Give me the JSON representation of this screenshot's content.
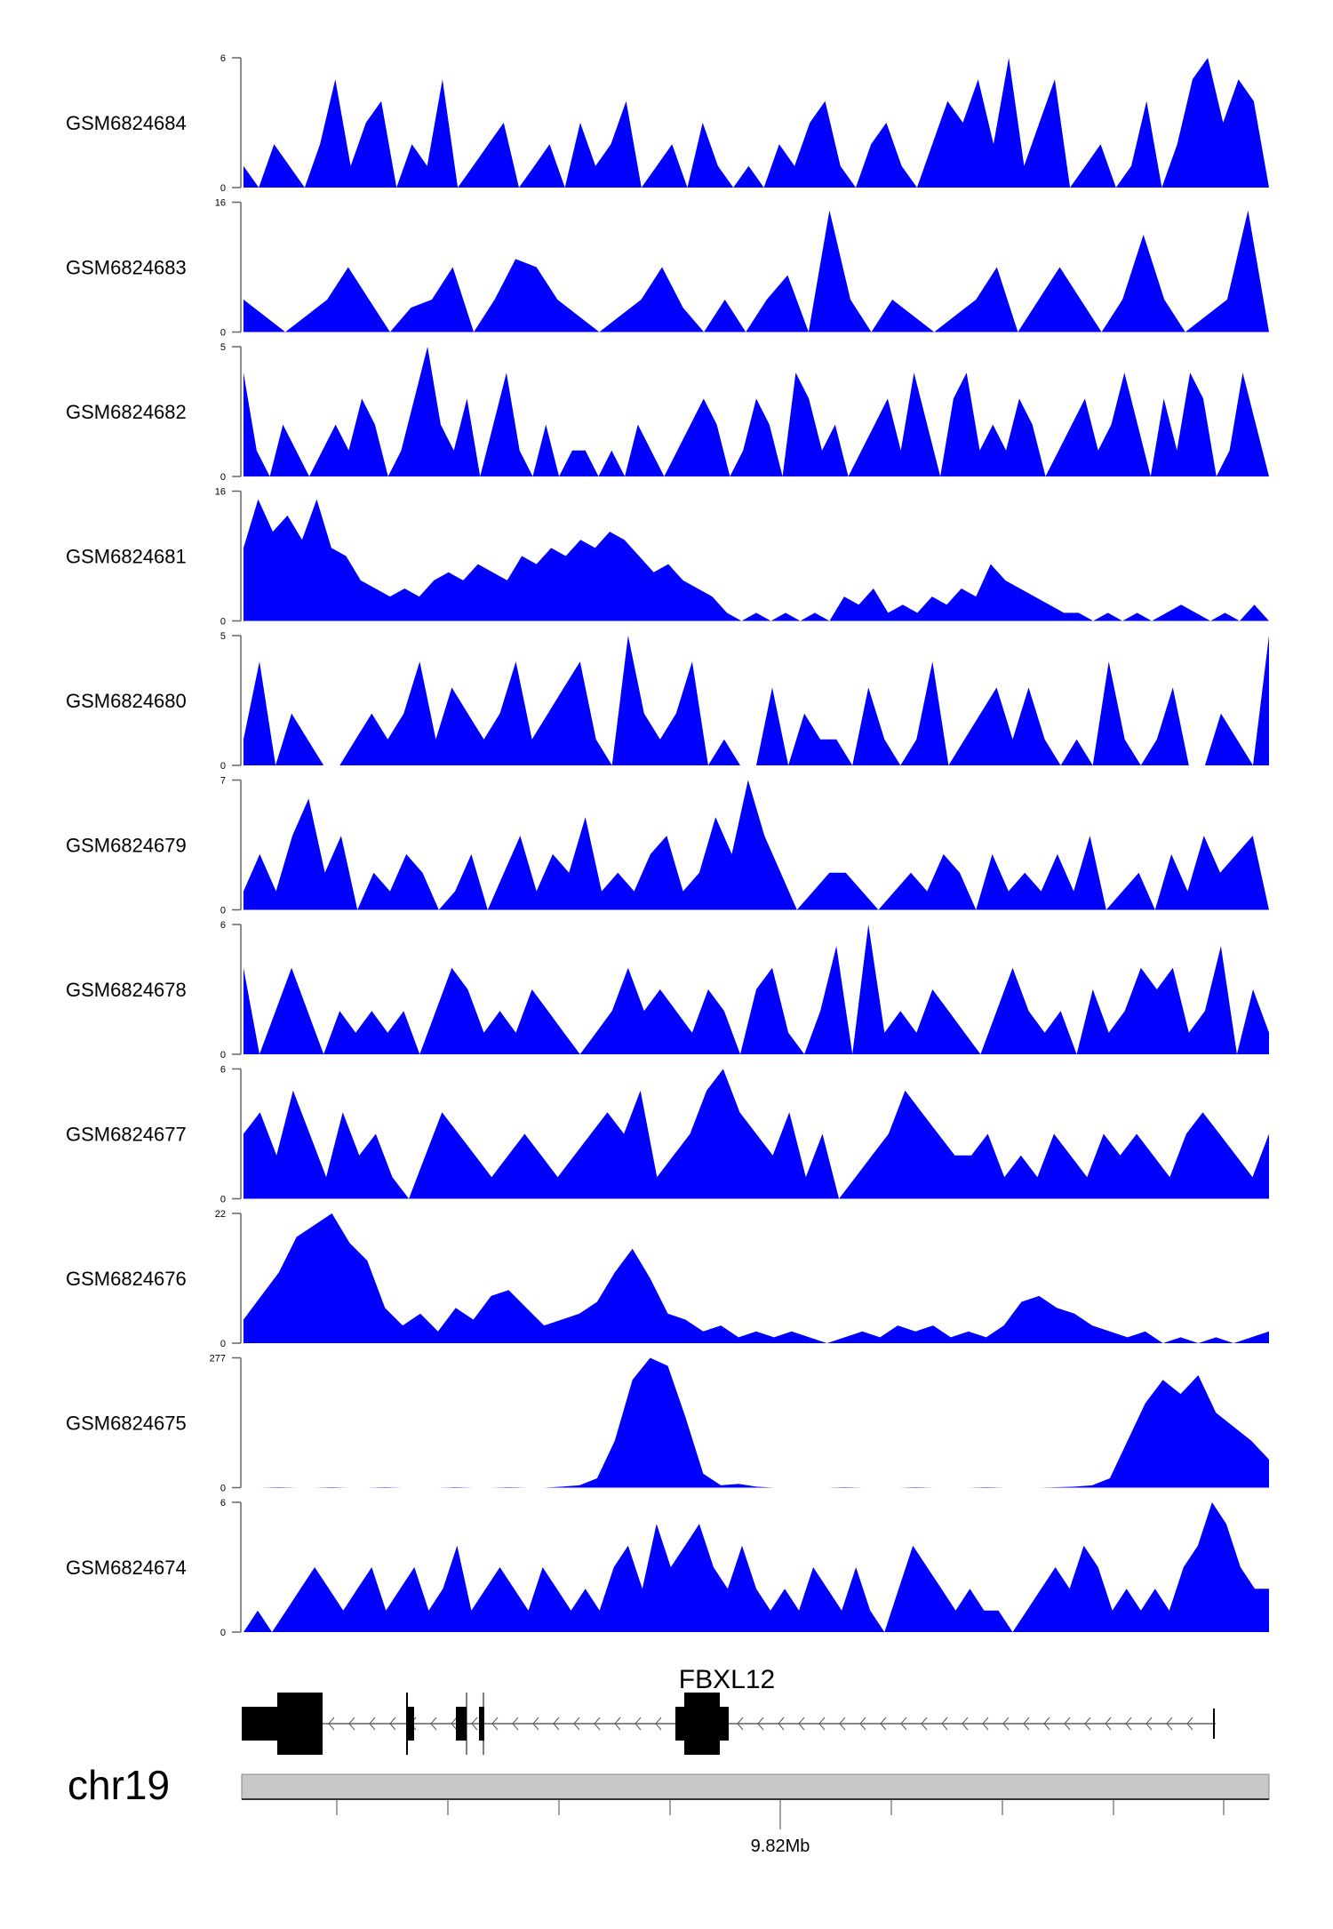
{
  "chart_data": {
    "type": "area",
    "title": "",
    "xlabel": "",
    "ylabel": "",
    "grid": false,
    "fill_color": "#0000ff",
    "tracks": [
      {
        "name": "GSM6824684",
        "ylim": [
          0,
          6
        ],
        "values": [
          1,
          0,
          2,
          1,
          0,
          2,
          5,
          1,
          3,
          4,
          0,
          2,
          1,
          5,
          0,
          1,
          2,
          3,
          0,
          1,
          2,
          0,
          3,
          1,
          2,
          4,
          0,
          1,
          2,
          0,
          3,
          1,
          0,
          1,
          0,
          2,
          1,
          3,
          4,
          1,
          0,
          2,
          3,
          1,
          0,
          2,
          4,
          3,
          5,
          2,
          6,
          1,
          3,
          5,
          0,
          1,
          2,
          0,
          1,
          4,
          0,
          2,
          5,
          6,
          3,
          5,
          4,
          0
        ]
      },
      {
        "name": "GSM6824683",
        "ylim": [
          0,
          16
        ],
        "values": [
          4,
          2,
          0,
          2,
          4,
          8,
          4,
          0,
          3,
          4,
          8,
          0,
          4,
          9,
          8,
          4,
          2,
          0,
          2,
          4,
          8,
          3,
          0,
          4,
          0,
          4,
          7,
          0,
          15,
          4,
          0,
          4,
          2,
          0,
          2,
          4,
          8,
          0,
          4,
          8,
          4,
          0,
          4,
          12,
          4,
          0,
          2,
          4,
          15,
          0
        ]
      },
      {
        "name": "GSM6824682",
        "ylim": [
          0,
          5
        ],
        "values": [
          4,
          1,
          0,
          2,
          1,
          0,
          1,
          2,
          1,
          3,
          2,
          0,
          1,
          3,
          5,
          2,
          1,
          3,
          0,
          2,
          4,
          1,
          0,
          2,
          0,
          1,
          1,
          0,
          1,
          0,
          2,
          1,
          0,
          1,
          2,
          3,
          2,
          0,
          1,
          3,
          2,
          0,
          4,
          3,
          1,
          2,
          0,
          1,
          2,
          3,
          1,
          4,
          2,
          0,
          3,
          4,
          1,
          2,
          1,
          3,
          2,
          0,
          1,
          2,
          3,
          1,
          2,
          4,
          2,
          0,
          3,
          1,
          4,
          3,
          0,
          1,
          4,
          2,
          0
        ]
      },
      {
        "name": "GSM6824681",
        "ylim": [
          0,
          16
        ],
        "values": [
          9,
          15,
          11,
          13,
          10,
          15,
          9,
          8,
          5,
          4,
          3,
          4,
          3,
          5,
          6,
          5,
          7,
          6,
          5,
          8,
          7,
          9,
          8,
          10,
          9,
          11,
          10,
          8,
          6,
          7,
          5,
          4,
          3,
          1,
          0,
          1,
          0,
          1,
          0,
          1,
          0,
          3,
          2,
          4,
          1,
          2,
          1,
          3,
          2,
          4,
          3,
          7,
          5,
          4,
          3,
          2,
          1,
          1,
          0,
          1,
          0,
          1,
          0,
          1,
          2,
          1,
          0,
          1,
          0,
          2,
          0
        ]
      },
      {
        "name": "GSM6824680",
        "ylim": [
          0,
          5
        ],
        "values": [
          1,
          4,
          0,
          2,
          1,
          0,
          0,
          1,
          2,
          1,
          2,
          4,
          1,
          3,
          2,
          1,
          2,
          4,
          1,
          2,
          3,
          4,
          1,
          0,
          5,
          2,
          1,
          2,
          4,
          0,
          1,
          0,
          0,
          3,
          0,
          2,
          1,
          1,
          0,
          3,
          1,
          0,
          1,
          4,
          0,
          1,
          2,
          3,
          1,
          3,
          1,
          0,
          1,
          0,
          4,
          1,
          0,
          1,
          3,
          0,
          0,
          2,
          1,
          0,
          5
        ]
      },
      {
        "name": "GSM6824679",
        "ylim": [
          0,
          7
        ],
        "values": [
          1,
          3,
          1,
          4,
          6,
          2,
          4,
          0,
          2,
          1,
          3,
          2,
          0,
          1,
          3,
          0,
          2,
          4,
          1,
          3,
          2,
          5,
          1,
          2,
          1,
          3,
          4,
          1,
          2,
          5,
          3,
          7,
          4,
          2,
          0,
          1,
          2,
          2,
          1,
          0,
          1,
          2,
          1,
          3,
          2,
          0,
          3,
          1,
          2,
          1,
          3,
          1,
          4,
          0,
          1,
          2,
          0,
          3,
          1,
          4,
          2,
          3,
          4,
          0
        ]
      },
      {
        "name": "GSM6824678",
        "ylim": [
          0,
          6
        ],
        "values": [
          4,
          0,
          2,
          4,
          2,
          0,
          2,
          1,
          2,
          1,
          2,
          0,
          2,
          4,
          3,
          1,
          2,
          1,
          3,
          2,
          1,
          0,
          1,
          2,
          4,
          2,
          3,
          2,
          1,
          3,
          2,
          0,
          3,
          4,
          1,
          0,
          2,
          5,
          0,
          6,
          1,
          2,
          1,
          3,
          2,
          1,
          0,
          2,
          4,
          2,
          1,
          2,
          0,
          3,
          1,
          2,
          4,
          3,
          4,
          1,
          2,
          5,
          0,
          3,
          1
        ]
      },
      {
        "name": "GSM6824677",
        "ylim": [
          0,
          6
        ],
        "values": [
          3,
          4,
          2,
          5,
          3,
          1,
          4,
          2,
          3,
          1,
          0,
          2,
          4,
          3,
          2,
          1,
          2,
          3,
          2,
          1,
          2,
          3,
          4,
          3,
          5,
          1,
          2,
          3,
          5,
          6,
          4,
          3,
          2,
          4,
          1,
          3,
          0,
          1,
          2,
          3,
          5,
          4,
          3,
          2,
          2,
          3,
          1,
          2,
          1,
          3,
          2,
          1,
          3,
          2,
          3,
          2,
          1,
          3,
          4,
          3,
          2,
          1,
          3
        ]
      },
      {
        "name": "GSM6824676",
        "ylim": [
          0,
          22
        ],
        "values": [
          4,
          8,
          12,
          18,
          20,
          22,
          17,
          14,
          6,
          3,
          5,
          2,
          6,
          4,
          8,
          9,
          6,
          3,
          4,
          5,
          7,
          12,
          16,
          11,
          5,
          4,
          2,
          3,
          1,
          2,
          1,
          2,
          1,
          0,
          1,
          2,
          1,
          3,
          2,
          3,
          1,
          2,
          1,
          3,
          7,
          8,
          6,
          5,
          3,
          2,
          1,
          2,
          0,
          1,
          0,
          1,
          0,
          1,
          2
        ]
      },
      {
        "name": "GSM6824675",
        "ylim": [
          0,
          277
        ],
        "values": [
          0,
          0,
          1,
          0,
          0,
          1,
          0,
          0,
          1,
          0,
          0,
          0,
          1,
          0,
          0,
          1,
          0,
          0,
          2,
          5,
          20,
          100,
          230,
          277,
          260,
          150,
          30,
          5,
          8,
          2,
          0,
          0,
          0,
          0,
          1,
          0,
          0,
          0,
          1,
          0,
          0,
          0,
          1,
          0,
          0,
          0,
          1,
          2,
          5,
          20,
          100,
          180,
          230,
          200,
          240,
          160,
          130,
          100,
          60
        ]
      },
      {
        "name": "GSM6824674",
        "ylim": [
          0,
          6
        ],
        "values": [
          0,
          1,
          0,
          1,
          2,
          3,
          2,
          1,
          2,
          3,
          1,
          2,
          3,
          1,
          2,
          4,
          1,
          2,
          3,
          2,
          1,
          3,
          2,
          1,
          2,
          1,
          3,
          4,
          2,
          5,
          3,
          4,
          5,
          3,
          2,
          4,
          2,
          1,
          2,
          1,
          3,
          2,
          1,
          3,
          1,
          0,
          2,
          4,
          3,
          2,
          1,
          2,
          1,
          1,
          0,
          1,
          2,
          3,
          2,
          4,
          3,
          1,
          2,
          1,
          2,
          1,
          3,
          4,
          6,
          5,
          3,
          2,
          2
        ]
      }
    ],
    "gene": {
      "name": "FBXL12",
      "strand": "-"
    },
    "chromosome": "chr19",
    "axis_tick_label": "9.82Mb"
  }
}
